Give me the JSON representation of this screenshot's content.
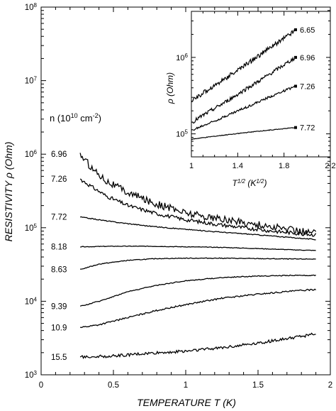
{
  "chart_data": [
    {
      "type": "line",
      "xlabel": "TEMPERATURE T (K)",
      "ylabel": "RESISTIVITY ρ (Ohm)",
      "xlim": [
        0,
        2
      ],
      "ylim": [
        1000,
        100000000
      ],
      "yscale": "log",
      "x_ticks": [
        "0",
        "0.5",
        "1",
        "1.5",
        "2"
      ],
      "y_ticks": [
        "10^3",
        "10^4",
        "10^5",
        "10^6",
        "10^7",
        "10^8"
      ],
      "legend_title": "n (10^10 cm^-2)",
      "series": [
        {
          "name": "6.96",
          "x": [
            0.27,
            0.35,
            0.45,
            0.6,
            0.8,
            1.0,
            1.2,
            1.4,
            1.6,
            1.8,
            1.9
          ],
          "y": [
            1000000,
            650000,
            440000,
            300000,
            210000,
            160000,
            135000,
            118000,
            102000,
            90000,
            85000
          ]
        },
        {
          "name": "7.26",
          "x": [
            0.27,
            0.35,
            0.45,
            0.6,
            0.8,
            1.0,
            1.2,
            1.4,
            1.6,
            1.8,
            1.9
          ],
          "y": [
            460000,
            360000,
            270000,
            200000,
            155000,
            128000,
            112000,
            100000,
            90000,
            83000,
            80000
          ]
        },
        {
          "name": "7.72",
          "x": [
            0.27,
            0.5,
            0.75,
            1.0,
            1.25,
            1.5,
            1.75,
            1.9
          ],
          "y": [
            140000,
            120000,
            105000,
            95000,
            87000,
            80000,
            73000,
            69000
          ]
        },
        {
          "name": "8.18",
          "x": [
            0.27,
            0.5,
            0.75,
            1.0,
            1.25,
            1.5,
            1.75,
            1.9
          ],
          "y": [
            55000,
            56000,
            56000,
            55000,
            54000,
            52000,
            50000,
            49000
          ]
        },
        {
          "name": "8.63",
          "x": [
            0.27,
            0.4,
            0.6,
            0.8,
            1.0,
            1.25,
            1.5,
            1.75,
            1.9
          ],
          "y": [
            27000,
            32000,
            36000,
            38000,
            38500,
            38500,
            38000,
            37500,
            37500
          ]
        },
        {
          "name": "9.39",
          "x": [
            0.27,
            0.4,
            0.6,
            0.8,
            1.0,
            1.25,
            1.5,
            1.75,
            1.9
          ],
          "y": [
            8500,
            10000,
            13500,
            16500,
            19000,
            21000,
            22000,
            22500,
            22500
          ]
        },
        {
          "name": "10.9",
          "x": [
            0.27,
            0.4,
            0.6,
            0.8,
            1.0,
            1.25,
            1.5,
            1.75,
            1.9
          ],
          "y": [
            4400,
            4800,
            6000,
            7500,
            9000,
            11000,
            12500,
            13800,
            14500
          ]
        },
        {
          "name": "15.5",
          "x": [
            0.27,
            0.5,
            0.75,
            1.0,
            1.25,
            1.5,
            1.75,
            1.9
          ],
          "y": [
            1750,
            1800,
            1950,
            2100,
            2350,
            2700,
            3200,
            3600
          ]
        }
      ]
    },
    {
      "type": "line",
      "xlabel": "T^1/2 (K^1/2)",
      "ylabel": "ρ (Ohm)",
      "xlim": [
        1,
        2.2
      ],
      "ylim": [
        50000,
        4000000
      ],
      "yscale": "log",
      "x_ticks": [
        "1",
        "1.4",
        "1.8",
        "2.2"
      ],
      "y_ticks": [
        "10^5",
        "10^6"
      ],
      "series": [
        {
          "name": "6.65",
          "x": [
            1.0,
            1.1,
            1.2,
            1.3,
            1.4,
            1.5,
            1.6,
            1.7,
            1.8,
            1.9
          ],
          "y": [
            270000,
            340000,
            430000,
            540000,
            680000,
            860000,
            1100000,
            1400000,
            1800000,
            2300000
          ]
        },
        {
          "name": "6.96",
          "x": [
            1.0,
            1.1,
            1.2,
            1.3,
            1.4,
            1.5,
            1.6,
            1.7,
            1.8,
            1.9
          ],
          "y": [
            140000,
            175000,
            215000,
            265000,
            330000,
            410000,
            510000,
            640000,
            800000,
            1000000
          ]
        },
        {
          "name": "7.26",
          "x": [
            1.0,
            1.1,
            1.2,
            1.3,
            1.4,
            1.5,
            1.6,
            1.7,
            1.8,
            1.9
          ],
          "y": [
            110000,
            128000,
            148000,
            172000,
            200000,
            232000,
            270000,
            315000,
            365000,
            420000
          ]
        },
        {
          "name": "7.72",
          "x": [
            1.0,
            1.1,
            1.2,
            1.3,
            1.4,
            1.5,
            1.6,
            1.7,
            1.8,
            1.9
          ],
          "y": [
            85000,
            89000,
            93000,
            97000,
            101000,
            105000,
            109000,
            113000,
            117000,
            121000
          ]
        }
      ]
    }
  ]
}
